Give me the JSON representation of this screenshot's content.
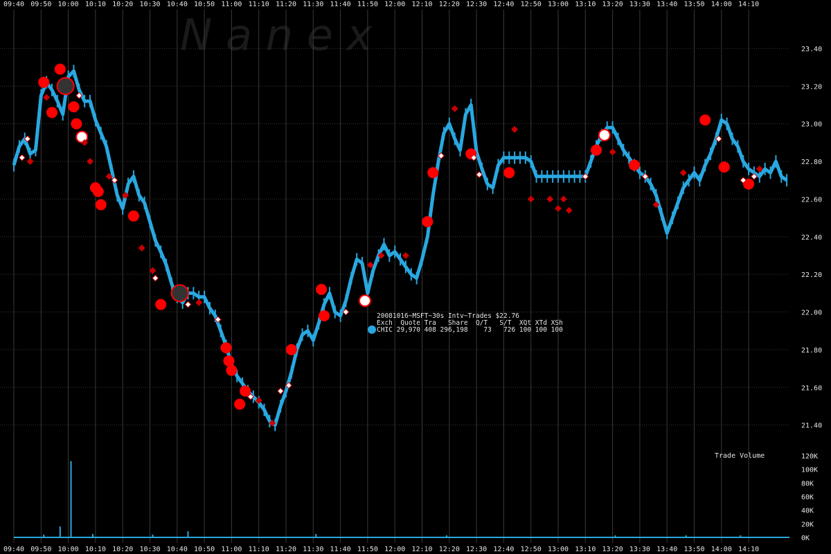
{
  "chart_data": {
    "type": "line",
    "watermark": "N a n e x",
    "x_ticks": [
      "09:40",
      "09:50",
      "10:00",
      "10:10",
      "10:20",
      "10:30",
      "10:40",
      "10:50",
      "11:00",
      "11:10",
      "11:20",
      "11:30",
      "11:40",
      "11:50",
      "12:00",
      "12:10",
      "12:20",
      "12:30",
      "12:40",
      "12:50",
      "13:00",
      "13:10",
      "13:20",
      "13:30",
      "13:40",
      "13:50",
      "14:00",
      "14:10"
    ],
    "x_range": [
      "09:40",
      "14:25"
    ],
    "price_axis": {
      "ylim": [
        21.2,
        23.4
      ],
      "ticks": [
        "23.40",
        "23.20",
        "23.00",
        "22.80",
        "22.60",
        "22.40",
        "22.20",
        "22.00",
        "21.80",
        "21.60",
        "21.40"
      ]
    },
    "volume_axis": {
      "label": "Trade Volume",
      "ylim": [
        0,
        120000
      ],
      "ticks": [
        "120K",
        "100K",
        "80K",
        "60K",
        "40K",
        "20K",
        "0K"
      ]
    },
    "legend": {
      "header": "20081016~MSFT~30s Intv~Trades $22.76",
      "columns": "Exch  Quote Tra   Share  Q/T   S/T  XQt XTd XSh",
      "row": "CHIC 29,970 408 296,198    73   726 100 100 100",
      "marker_color": "#29a8e0"
    },
    "colors": {
      "price": "#29a8e0",
      "large_trade": "#ff0000",
      "small_trade": "#cc0000",
      "white_trade": "#ffffff",
      "grid": "#3a3a3a"
    },
    "series": [
      {
        "name": "CHIC",
        "type": "price",
        "x": [
          "09:40",
          "09:42",
          "09:44",
          "09:46",
          "09:48",
          "09:50",
          "09:52",
          "09:54",
          "09:56",
          "09:58",
          "10:00",
          "10:02",
          "10:04",
          "10:06",
          "10:08",
          "10:10",
          "10:12",
          "10:14",
          "10:16",
          "10:18",
          "10:20",
          "10:22",
          "10:24",
          "10:26",
          "10:28",
          "10:30",
          "10:32",
          "10:34",
          "10:36",
          "10:38",
          "10:40",
          "10:42",
          "10:44",
          "10:46",
          "10:48",
          "10:50",
          "10:52",
          "10:54",
          "10:56",
          "10:58",
          "11:00",
          "11:02",
          "11:04",
          "11:06",
          "11:08",
          "11:10",
          "11:12",
          "11:14",
          "11:16",
          "11:18",
          "11:20",
          "11:22",
          "11:24",
          "11:26",
          "11:28",
          "11:30",
          "11:32",
          "11:34",
          "11:36",
          "11:38",
          "11:40",
          "11:42",
          "11:44",
          "11:46",
          "11:48",
          "11:50",
          "11:52",
          "11:54",
          "11:56",
          "11:58",
          "12:00",
          "12:02",
          "12:04",
          "12:06",
          "12:08",
          "12:10",
          "12:12",
          "12:14",
          "12:16",
          "12:18",
          "12:20",
          "12:22",
          "12:24",
          "12:26",
          "12:28",
          "12:30",
          "12:32",
          "12:34",
          "12:36",
          "12:38",
          "12:40",
          "12:42",
          "12:44",
          "12:46",
          "12:48",
          "12:50",
          "12:52",
          "12:54",
          "12:56",
          "12:58",
          "13:00",
          "13:02",
          "13:04",
          "13:06",
          "13:08",
          "13:10",
          "13:12",
          "13:14",
          "13:16",
          "13:18",
          "13:20",
          "13:22",
          "13:24",
          "13:26",
          "13:28",
          "13:30",
          "13:32",
          "13:34",
          "13:36",
          "13:38",
          "13:40",
          "13:42",
          "13:44",
          "13:46",
          "13:48",
          "13:50",
          "13:52",
          "13:54",
          "13:56",
          "13:58",
          "14:00",
          "14:02",
          "14:04",
          "14:06",
          "14:08",
          "14:10",
          "14:12",
          "14:14",
          "14:16",
          "14:18",
          "14:20",
          "14:22",
          "14:24"
        ],
        "values": [
          22.78,
          22.88,
          22.92,
          22.84,
          22.86,
          23.15,
          23.22,
          23.18,
          23.12,
          23.05,
          23.25,
          23.28,
          23.18,
          23.12,
          23.12,
          23.02,
          22.95,
          22.88,
          22.75,
          22.62,
          22.55,
          22.68,
          22.72,
          22.62,
          22.58,
          22.48,
          22.38,
          22.32,
          22.25,
          22.15,
          22.08,
          22.05,
          22.1,
          22.1,
          22.08,
          22.08,
          22.02,
          21.98,
          21.9,
          21.82,
          21.72,
          21.66,
          21.62,
          21.58,
          21.55,
          21.52,
          21.48,
          21.42,
          21.4,
          21.5,
          21.58,
          21.68,
          21.8,
          21.88,
          21.9,
          21.85,
          21.94,
          22.04,
          22.1,
          22.0,
          21.98,
          22.06,
          22.18,
          22.28,
          22.26,
          22.1,
          22.22,
          22.3,
          22.36,
          22.3,
          22.32,
          22.28,
          22.24,
          22.2,
          22.18,
          22.28,
          22.4,
          22.62,
          22.8,
          22.95,
          23.0,
          22.92,
          22.86,
          23.05,
          23.1,
          22.85,
          22.76,
          22.68,
          22.66,
          22.78,
          22.82,
          22.82,
          22.82,
          22.82,
          22.82,
          22.8,
          22.72,
          22.72,
          22.72,
          22.72,
          22.72,
          22.72,
          22.72,
          22.72,
          22.72,
          22.72,
          22.8,
          22.88,
          22.94,
          22.98,
          22.98,
          22.92,
          22.86,
          22.82,
          22.78,
          22.74,
          22.72,
          22.68,
          22.62,
          22.52,
          22.42,
          22.5,
          22.58,
          22.66,
          22.7,
          22.74,
          22.7,
          22.78,
          22.84,
          22.92,
          23.02,
          23.0,
          22.92,
          22.88,
          22.8,
          22.76,
          22.74,
          22.72,
          22.76,
          22.74,
          22.8,
          22.72,
          22.7
        ]
      }
    ],
    "trade_markers": [
      {
        "x": "09:51",
        "y": 23.22,
        "size": "large",
        "color": "red"
      },
      {
        "x": "09:57",
        "y": 23.29,
        "size": "large",
        "color": "red"
      },
      {
        "x": "09:59",
        "y": 23.2,
        "size": "ring",
        "color": "red"
      },
      {
        "x": "09:54",
        "y": 23.06,
        "size": "large",
        "color": "red"
      },
      {
        "x": "10:02",
        "y": 23.09,
        "size": "large",
        "color": "red"
      },
      {
        "x": "10:03",
        "y": 23.0,
        "size": "large",
        "color": "red"
      },
      {
        "x": "10:05",
        "y": 22.93,
        "size": "large",
        "color": "white"
      },
      {
        "x": "10:10",
        "y": 22.66,
        "size": "large",
        "color": "red"
      },
      {
        "x": "10:11",
        "y": 22.64,
        "size": "large",
        "color": "red"
      },
      {
        "x": "10:12",
        "y": 22.57,
        "size": "large",
        "color": "red"
      },
      {
        "x": "10:24",
        "y": 22.51,
        "size": "large",
        "color": "red"
      },
      {
        "x": "10:34",
        "y": 22.04,
        "size": "large",
        "color": "red"
      },
      {
        "x": "10:41",
        "y": 22.1,
        "size": "ring",
        "color": "red"
      },
      {
        "x": "10:58",
        "y": 21.81,
        "size": "large",
        "color": "red"
      },
      {
        "x": "10:59",
        "y": 21.74,
        "size": "large",
        "color": "red"
      },
      {
        "x": "11:00",
        "y": 21.69,
        "size": "large",
        "color": "red"
      },
      {
        "x": "11:03",
        "y": 21.51,
        "size": "large",
        "color": "red"
      },
      {
        "x": "11:05",
        "y": 21.58,
        "size": "large",
        "color": "red"
      },
      {
        "x": "11:22",
        "y": 21.8,
        "size": "large",
        "color": "red"
      },
      {
        "x": "11:33",
        "y": 22.12,
        "size": "large",
        "color": "red"
      },
      {
        "x": "11:34",
        "y": 21.98,
        "size": "large",
        "color": "red"
      },
      {
        "x": "11:49",
        "y": 22.06,
        "size": "large",
        "color": "white"
      },
      {
        "x": "12:12",
        "y": 22.48,
        "size": "large",
        "color": "red"
      },
      {
        "x": "12:14",
        "y": 22.74,
        "size": "large",
        "color": "red"
      },
      {
        "x": "12:28",
        "y": 22.84,
        "size": "large",
        "color": "red"
      },
      {
        "x": "12:42",
        "y": 22.74,
        "size": "large",
        "color": "red"
      },
      {
        "x": "13:14",
        "y": 22.86,
        "size": "large",
        "color": "red"
      },
      {
        "x": "13:17",
        "y": 22.94,
        "size": "large",
        "color": "white"
      },
      {
        "x": "13:28",
        "y": 22.78,
        "size": "large",
        "color": "red"
      },
      {
        "x": "13:54",
        "y": 23.02,
        "size": "large",
        "color": "red"
      },
      {
        "x": "14:01",
        "y": 22.77,
        "size": "large",
        "color": "red"
      },
      {
        "x": "14:10",
        "y": 22.68,
        "size": "large",
        "color": "red"
      },
      {
        "x": "09:45",
        "y": 22.92,
        "size": "small",
        "color": "white"
      },
      {
        "x": "09:43",
        "y": 22.82,
        "size": "small",
        "color": "white"
      },
      {
        "x": "09:46",
        "y": 22.8,
        "size": "small",
        "color": "red"
      },
      {
        "x": "09:52",
        "y": 23.14,
        "size": "small",
        "color": "red"
      },
      {
        "x": "10:04",
        "y": 23.15,
        "size": "small",
        "color": "white"
      },
      {
        "x": "10:06",
        "y": 22.9,
        "size": "small",
        "color": "red"
      },
      {
        "x": "10:08",
        "y": 22.8,
        "size": "small",
        "color": "red"
      },
      {
        "x": "10:15",
        "y": 22.72,
        "size": "small",
        "color": "red"
      },
      {
        "x": "10:17",
        "y": 22.7,
        "size": "small",
        "color": "white"
      },
      {
        "x": "10:21",
        "y": 22.62,
        "size": "small",
        "color": "red"
      },
      {
        "x": "10:27",
        "y": 22.34,
        "size": "small",
        "color": "red"
      },
      {
        "x": "10:31",
        "y": 22.22,
        "size": "small",
        "color": "red"
      },
      {
        "x": "10:32",
        "y": 22.18,
        "size": "small",
        "color": "white"
      },
      {
        "x": "10:44",
        "y": 22.04,
        "size": "small",
        "color": "white"
      },
      {
        "x": "10:48",
        "y": 22.05,
        "size": "small",
        "color": "red"
      },
      {
        "x": "10:55",
        "y": 21.96,
        "size": "small",
        "color": "white"
      },
      {
        "x": "11:07",
        "y": 21.55,
        "size": "small",
        "color": "white"
      },
      {
        "x": "11:10",
        "y": 21.53,
        "size": "small",
        "color": "red"
      },
      {
        "x": "11:15",
        "y": 21.41,
        "size": "small",
        "color": "red"
      },
      {
        "x": "11:18",
        "y": 21.58,
        "size": "small",
        "color": "white"
      },
      {
        "x": "11:21",
        "y": 21.61,
        "size": "small",
        "color": "white"
      },
      {
        "x": "11:42",
        "y": 22.0,
        "size": "small",
        "color": "white"
      },
      {
        "x": "11:51",
        "y": 22.25,
        "size": "small",
        "color": "red"
      },
      {
        "x": "11:55",
        "y": 22.3,
        "size": "small",
        "color": "red"
      },
      {
        "x": "12:04",
        "y": 22.3,
        "size": "small",
        "color": "red"
      },
      {
        "x": "12:17",
        "y": 22.83,
        "size": "small",
        "color": "white"
      },
      {
        "x": "12:22",
        "y": 23.08,
        "size": "small",
        "color": "red"
      },
      {
        "x": "12:29",
        "y": 22.82,
        "size": "small",
        "color": "white"
      },
      {
        "x": "12:31",
        "y": 22.73,
        "size": "small",
        "color": "white"
      },
      {
        "x": "12:44",
        "y": 22.97,
        "size": "small",
        "color": "red"
      },
      {
        "x": "12:50",
        "y": 22.6,
        "size": "small",
        "color": "red"
      },
      {
        "x": "12:57",
        "y": 22.6,
        "size": "small",
        "color": "red"
      },
      {
        "x": "13:00",
        "y": 22.55,
        "size": "small",
        "color": "red"
      },
      {
        "x": "13:02",
        "y": 22.6,
        "size": "small",
        "color": "red"
      },
      {
        "x": "13:04",
        "y": 22.54,
        "size": "small",
        "color": "red"
      },
      {
        "x": "13:10",
        "y": 22.72,
        "size": "small",
        "color": "white"
      },
      {
        "x": "13:20",
        "y": 22.85,
        "size": "small",
        "color": "red"
      },
      {
        "x": "13:32",
        "y": 22.72,
        "size": "small",
        "color": "white"
      },
      {
        "x": "13:36",
        "y": 22.57,
        "size": "small",
        "color": "red"
      },
      {
        "x": "13:46",
        "y": 22.74,
        "size": "small",
        "color": "red"
      },
      {
        "x": "13:59",
        "y": 22.92,
        "size": "small",
        "color": "white"
      },
      {
        "x": "14:08",
        "y": 22.7,
        "size": "small",
        "color": "white"
      },
      {
        "x": "14:12",
        "y": 22.72,
        "size": "small",
        "color": "white"
      },
      {
        "x": "14:14",
        "y": 22.76,
        "size": "small",
        "color": "red"
      }
    ],
    "volume_bars": [
      {
        "x": "10:01",
        "value": 112000
      },
      {
        "x": "09:57",
        "value": 16000
      },
      {
        "x": "10:09",
        "value": 5000
      },
      {
        "x": "10:44",
        "value": 9000
      },
      {
        "x": "11:31",
        "value": 5000
      },
      {
        "x": "09:51",
        "value": 4000
      },
      {
        "x": "10:31",
        "value": 4000
      },
      {
        "x": "12:19",
        "value": 3000
      },
      {
        "x": "13:21",
        "value": 3000
      },
      {
        "x": "13:47",
        "value": 3000
      },
      {
        "x": "14:07",
        "value": 3000
      }
    ]
  }
}
